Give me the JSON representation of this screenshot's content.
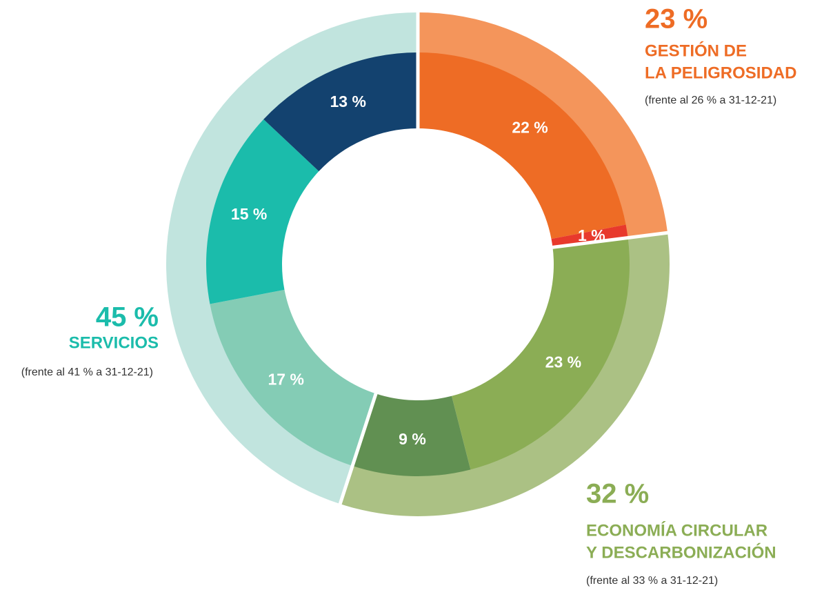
{
  "chart_data": {
    "type": "sunburst",
    "groups": [
      {
        "name_lines": [
          "GESTIÓN DE",
          "LA PELIGROSIDAD"
        ],
        "total": 23,
        "total_label": "23 %",
        "note": "(frente al 26 % a 31-12-21)",
        "color": "#f4955b",
        "label_color": "#ee6c25",
        "values": [
          22,
          1
        ],
        "value_labels": [
          "22 %",
          "1 %"
        ],
        "colors": [
          "#ee6c25",
          "#e8392c"
        ]
      },
      {
        "name_lines": [
          "ECONOMÍA CIRCULAR",
          "Y DESCARBONIZACIÓN"
        ],
        "total": 32,
        "total_label": "32 %",
        "note": "(frente al 33 % a 31-12-21)",
        "color": "#abc184",
        "label_color": "#8bad55",
        "values": [
          23,
          9
        ],
        "value_labels": [
          "23 %",
          "9 %"
        ],
        "colors": [
          "#8bad55",
          "#619052"
        ]
      },
      {
        "name_lines": [
          "SERVICIOS"
        ],
        "total": 45,
        "total_label": "45 %",
        "note": "(frente al 41 % a 31-12-21)",
        "color": "#c1e4de",
        "label_color": "#1bbcab",
        "values": [
          17,
          15,
          13
        ],
        "value_labels": [
          "17 %",
          "15 %",
          "13 %"
        ],
        "colors": [
          "#84ccb5",
          "#1bbcab",
          "#13426f"
        ]
      }
    ]
  }
}
